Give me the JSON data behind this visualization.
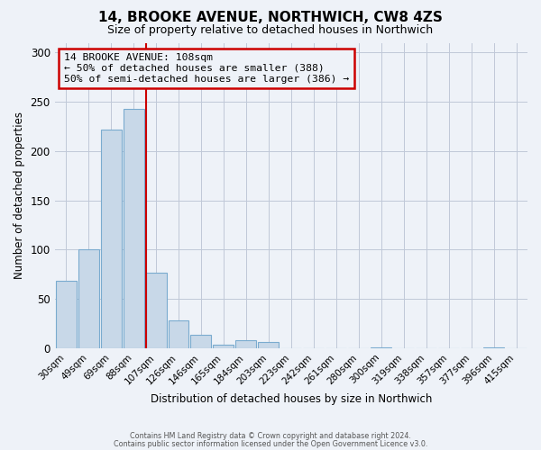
{
  "title": "14, BROOKE AVENUE, NORTHWICH, CW8 4ZS",
  "subtitle": "Size of property relative to detached houses in Northwich",
  "xlabel": "Distribution of detached houses by size in Northwich",
  "ylabel": "Number of detached properties",
  "bar_labels": [
    "30sqm",
    "49sqm",
    "69sqm",
    "88sqm",
    "107sqm",
    "126sqm",
    "146sqm",
    "165sqm",
    "184sqm",
    "203sqm",
    "223sqm",
    "242sqm",
    "261sqm",
    "280sqm",
    "300sqm",
    "319sqm",
    "338sqm",
    "357sqm",
    "377sqm",
    "396sqm",
    "415sqm"
  ],
  "bar_values": [
    68,
    100,
    222,
    243,
    77,
    28,
    14,
    4,
    8,
    6,
    0,
    0,
    0,
    0,
    1,
    0,
    0,
    0,
    0,
    1,
    0
  ],
  "bar_color": "#c8d8e8",
  "bar_edge_color": "#7aabcf",
  "property_line_index": 4,
  "property_line_color": "#cc0000",
  "annotation_title": "14 BROOKE AVENUE: 108sqm",
  "annotation_line1": "← 50% of detached houses are smaller (388)",
  "annotation_line2": "50% of semi-detached houses are larger (386) →",
  "annotation_box_edge_color": "#cc0000",
  "ylim": [
    0,
    310
  ],
  "yticks": [
    0,
    50,
    100,
    150,
    200,
    250,
    300
  ],
  "footer1": "Contains HM Land Registry data © Crown copyright and database right 2024.",
  "footer2": "Contains public sector information licensed under the Open Government Licence v3.0.",
  "background_color": "#eef2f8"
}
